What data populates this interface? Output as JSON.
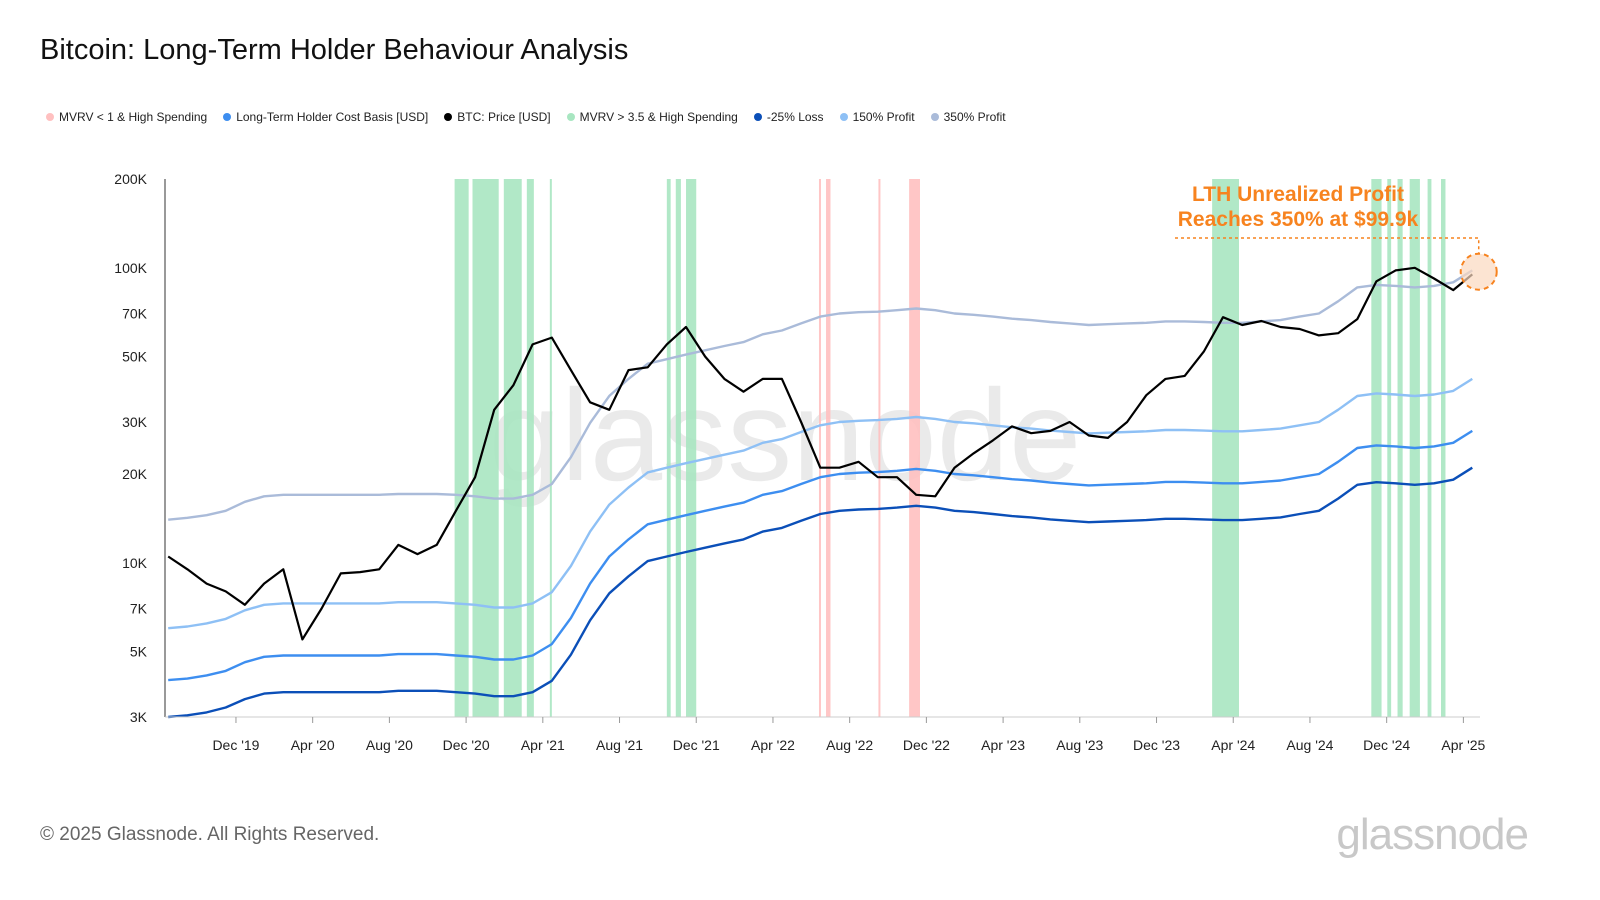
{
  "title": "Bitcoin: Long-Term Holder Behaviour Analysis",
  "footer": "© 2025 Glassnode. All Rights Reserved.",
  "logo": "glassnode",
  "watermark": "glassnode",
  "chart_data": {
    "type": "line",
    "title": "Bitcoin: Long-Term Holder Behaviour Analysis",
    "xlabel": "",
    "ylabel": "",
    "y_scale": "log",
    "ylim": [
      3000,
      200000
    ],
    "xlim": [
      "2019-08-10",
      "2025-04-27"
    ],
    "grid": false,
    "legend_position": "top-left",
    "y_ticks": [
      {
        "label": "200K",
        "value": 200000
      },
      {
        "label": "100K",
        "value": 100000
      },
      {
        "label": "70K",
        "value": 70000
      },
      {
        "label": "50K",
        "value": 50000
      },
      {
        "label": "30K",
        "value": 30000
      },
      {
        "label": "20K",
        "value": 20000
      },
      {
        "label": "10K",
        "value": 10000
      },
      {
        "label": "7K",
        "value": 7000
      },
      {
        "label": "5K",
        "value": 5000
      },
      {
        "label": "3K",
        "value": 3000
      }
    ],
    "x_ticks": [
      {
        "label": "Dec '19",
        "date": "2019-12-01"
      },
      {
        "label": "Apr '20",
        "date": "2020-04-01"
      },
      {
        "label": "Aug '20",
        "date": "2020-08-01"
      },
      {
        "label": "Dec '20",
        "date": "2020-12-01"
      },
      {
        "label": "Apr '21",
        "date": "2021-04-01"
      },
      {
        "label": "Aug '21",
        "date": "2021-08-01"
      },
      {
        "label": "Dec '21",
        "date": "2021-12-01"
      },
      {
        "label": "Apr '22",
        "date": "2022-04-01"
      },
      {
        "label": "Aug '22",
        "date": "2022-08-01"
      },
      {
        "label": "Dec '22",
        "date": "2022-12-01"
      },
      {
        "label": "Apr '23",
        "date": "2023-04-01"
      },
      {
        "label": "Aug '23",
        "date": "2023-08-01"
      },
      {
        "label": "Dec '23",
        "date": "2023-12-01"
      },
      {
        "label": "Apr '24",
        "date": "2024-04-01"
      },
      {
        "label": "Aug '24",
        "date": "2024-08-01"
      },
      {
        "label": "Dec '24",
        "date": "2024-12-01"
      },
      {
        "label": "Apr '25",
        "date": "2025-04-01"
      }
    ],
    "x": [
      "2019-08-15",
      "2019-09-15",
      "2019-10-15",
      "2019-11-15",
      "2019-12-15",
      "2020-01-15",
      "2020-02-15",
      "2020-03-15",
      "2020-04-15",
      "2020-05-15",
      "2020-06-15",
      "2020-07-15",
      "2020-08-15",
      "2020-09-15",
      "2020-10-15",
      "2020-11-15",
      "2020-12-15",
      "2021-01-15",
      "2021-02-15",
      "2021-03-15",
      "2021-04-15",
      "2021-05-15",
      "2021-06-15",
      "2021-07-15",
      "2021-08-15",
      "2021-09-15",
      "2021-10-15",
      "2021-11-15",
      "2021-12-15",
      "2022-01-15",
      "2022-02-15",
      "2022-03-15",
      "2022-04-15",
      "2022-05-15",
      "2022-06-15",
      "2022-07-15",
      "2022-08-15",
      "2022-09-15",
      "2022-10-15",
      "2022-11-15",
      "2022-12-15",
      "2023-01-15",
      "2023-02-15",
      "2023-03-15",
      "2023-04-15",
      "2023-05-15",
      "2023-06-15",
      "2023-07-15",
      "2023-08-15",
      "2023-09-15",
      "2023-10-15",
      "2023-11-15",
      "2023-12-15",
      "2024-01-15",
      "2024-02-15",
      "2024-03-15",
      "2024-04-15",
      "2024-05-15",
      "2024-06-15",
      "2024-07-15",
      "2024-08-15",
      "2024-09-15",
      "2024-10-15",
      "2024-11-15",
      "2024-12-15",
      "2025-01-15",
      "2025-02-15",
      "2025-03-15",
      "2025-04-15"
    ],
    "series": [
      {
        "name": "350% Profit",
        "color": "#aabbd9",
        "values": [
          14000,
          14200,
          14500,
          15000,
          16100,
          16800,
          17000,
          17000,
          17000,
          17000,
          17000,
          17000,
          17100,
          17100,
          17100,
          17000,
          16800,
          16500,
          16500,
          17000,
          18500,
          22800,
          29800,
          36800,
          42000,
          47300,
          49000,
          50800,
          52500,
          54300,
          56000,
          59500,
          61300,
          64800,
          68300,
          70000,
          70700,
          71000,
          71800,
          72800,
          71800,
          70000,
          69300,
          68300,
          67200,
          66500,
          65500,
          64800,
          64000,
          64400,
          64800,
          65100,
          65800,
          65800,
          65500,
          65100,
          65100,
          65800,
          66500,
          68300,
          70000,
          77000,
          85800,
          87500,
          86800,
          85800,
          86800,
          89300,
          98000
        ]
      },
      {
        "name": "150% Profit",
        "color": "#8ec0f5",
        "values": [
          6000,
          6080,
          6230,
          6450,
          6900,
          7200,
          7280,
          7280,
          7280,
          7280,
          7280,
          7280,
          7350,
          7350,
          7350,
          7280,
          7200,
          7050,
          7050,
          7280,
          7950,
          9750,
          12750,
          15750,
          18000,
          20250,
          21000,
          21750,
          22500,
          23250,
          24000,
          25500,
          26250,
          27750,
          29250,
          30000,
          30300,
          30450,
          30750,
          31200,
          30750,
          30000,
          29700,
          29250,
          28800,
          28500,
          28050,
          27750,
          27450,
          27600,
          27750,
          27900,
          28200,
          28200,
          28050,
          27900,
          27900,
          28200,
          28500,
          29250,
          30000,
          33000,
          36750,
          37500,
          37200,
          36750,
          37200,
          38250,
          42000
        ]
      },
      {
        "name": "Long-Term Holder Cost Basis [USD]",
        "color": "#3d8ef0",
        "values": [
          4000,
          4050,
          4150,
          4300,
          4600,
          4800,
          4850,
          4850,
          4850,
          4850,
          4850,
          4850,
          4900,
          4900,
          4900,
          4850,
          4800,
          4700,
          4700,
          4850,
          5300,
          6500,
          8500,
          10500,
          12000,
          13500,
          14000,
          14500,
          15000,
          15500,
          16000,
          17000,
          17500,
          18500,
          19500,
          20000,
          20200,
          20300,
          20500,
          20800,
          20500,
          20000,
          19800,
          19500,
          19200,
          19000,
          18700,
          18500,
          18300,
          18400,
          18500,
          18600,
          18800,
          18800,
          18700,
          18600,
          18600,
          18800,
          19000,
          19500,
          20000,
          22000,
          24500,
          25000,
          24800,
          24500,
          24800,
          25500,
          28000
        ]
      },
      {
        "name": "-25% Loss",
        "color": "#0b4fb8",
        "values": [
          3000,
          3040,
          3110,
          3230,
          3450,
          3600,
          3640,
          3640,
          3640,
          3640,
          3640,
          3640,
          3680,
          3680,
          3680,
          3640,
          3600,
          3530,
          3530,
          3640,
          3980,
          4880,
          6380,
          7880,
          9000,
          10130,
          10500,
          10880,
          11250,
          11630,
          12000,
          12750,
          13130,
          13880,
          14630,
          15000,
          15150,
          15230,
          15380,
          15600,
          15380,
          15000,
          14850,
          14630,
          14400,
          14250,
          14030,
          13880,
          13730,
          13800,
          13880,
          13950,
          14100,
          14100,
          14030,
          13950,
          13950,
          14100,
          14250,
          14630,
          15000,
          16500,
          18380,
          18750,
          18600,
          18380,
          18600,
          19130,
          21000
        ]
      },
      {
        "name": "BTC: Price [USD]",
        "color": "#000000",
        "values": [
          10500,
          9500,
          8500,
          8000,
          7200,
          8500,
          9500,
          5500,
          7000,
          9200,
          9300,
          9500,
          11500,
          10700,
          11500,
          15000,
          19500,
          33000,
          40000,
          55000,
          58000,
          45000,
          35000,
          33000,
          45000,
          46000,
          55000,
          63000,
          50000,
          42000,
          38000,
          42000,
          42000,
          30000,
          21000,
          21000,
          22000,
          19500,
          19500,
          17000,
          16800,
          21000,
          23500,
          26000,
          29000,
          27500,
          28000,
          30000,
          27000,
          26500,
          30000,
          37000,
          42000,
          43000,
          52000,
          68000,
          64000,
          66000,
          63000,
          62000,
          59000,
          60000,
          67000,
          90000,
          98000,
          100000,
          92000,
          84000,
          95000
        ]
      }
    ],
    "legend": [
      {
        "label": "MVRV < 1 & High Spending",
        "color": "#ffc0c0"
      },
      {
        "label": "Long-Term Holder Cost Basis [USD]",
        "color": "#3d8ef0"
      },
      {
        "label": "BTC: Price [USD]",
        "color": "#000000"
      },
      {
        "label": "MVRV > 3.5 & High Spending",
        "color": "#a8e6c1"
      },
      {
        "label": "-25% Loss",
        "color": "#0b4fb8"
      },
      {
        "label": "150% Profit",
        "color": "#8ec0f5"
      },
      {
        "label": "350% Profit",
        "color": "#aabbd9"
      }
    ],
    "highlight_bands": {
      "mvrv_gt_3_5_high_spending": {
        "color": "#a8e6c1",
        "ranges": [
          [
            "2020-11-13",
            "2020-12-05"
          ],
          [
            "2020-12-11",
            "2021-01-22"
          ],
          [
            "2021-01-30",
            "2021-02-28"
          ],
          [
            "2021-03-06",
            "2021-03-17"
          ],
          [
            "2021-04-12",
            "2021-04-15"
          ],
          [
            "2021-10-15",
            "2021-10-21"
          ],
          [
            "2021-10-29",
            "2021-11-07"
          ],
          [
            "2021-11-15",
            "2021-12-01"
          ],
          [
            "2024-02-28",
            "2024-04-10"
          ],
          [
            "2024-11-07",
            "2024-11-23"
          ],
          [
            "2024-12-02",
            "2024-12-08"
          ],
          [
            "2024-12-18",
            "2024-12-26"
          ],
          [
            "2025-01-07",
            "2025-01-23"
          ],
          [
            "2025-02-05",
            "2025-02-11"
          ],
          [
            "2025-02-26",
            "2025-03-03"
          ]
        ]
      },
      "mvrv_lt_1_high_spending": {
        "color": "#ffc0c0",
        "ranges": [
          [
            "2022-06-13",
            "2022-06-15"
          ],
          [
            "2022-06-24",
            "2022-07-01"
          ],
          [
            "2022-09-16",
            "2022-09-18"
          ],
          [
            "2022-11-04",
            "2022-11-21"
          ]
        ]
      }
    },
    "annotation": {
      "lines": [
        "LTH Unrealized Profit",
        "Reaches 350% at $99.9k"
      ],
      "color": "#f7831f",
      "date": "2025-04-25",
      "value": 97000
    }
  }
}
